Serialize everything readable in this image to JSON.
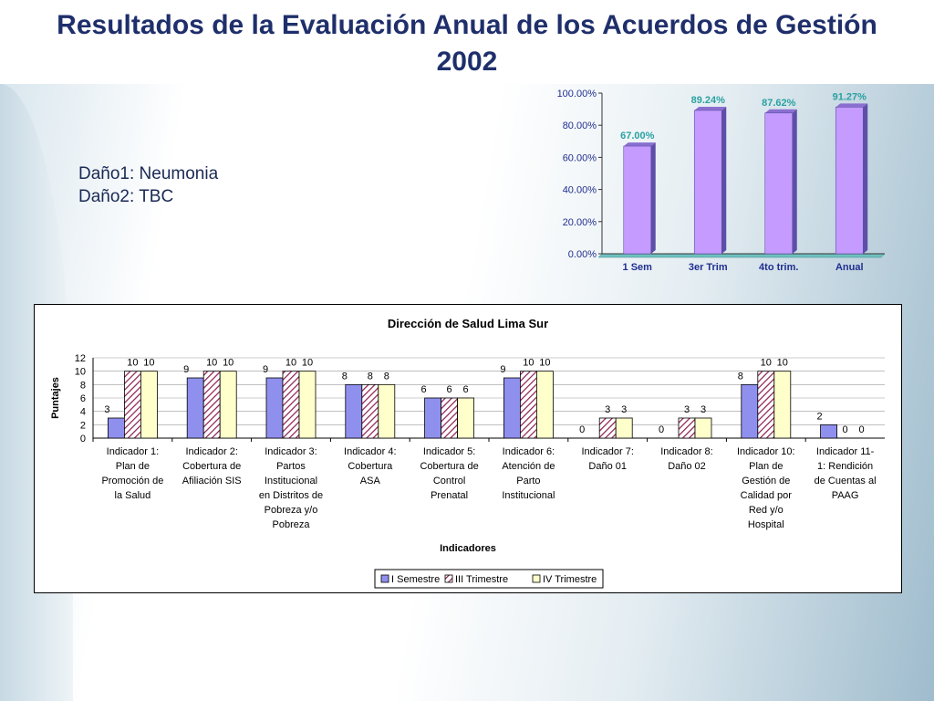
{
  "slide": {
    "title": "Resultados de la Evaluación Anual de los Acuerdos de Gestión 2002",
    "notes": [
      "Daño1: Neumonia",
      "Daño2: TBC"
    ]
  },
  "colors": {
    "title": "#1f2f6b",
    "top_bar": "#c59bff",
    "top_label": "#2aa1a1",
    "series_1": "#8f90ee",
    "series_2": "#c4a0d8",
    "series_3": "#ffffcc"
  },
  "chart_data": [
    {
      "type": "bar",
      "title": "",
      "categories": [
        "1 Sem",
        "3er Trim",
        "4to trim.",
        "Anual"
      ],
      "values": [
        67.0,
        89.24,
        87.62,
        91.27
      ],
      "value_labels": [
        "67.00%",
        "89.24%",
        "87.62%",
        "91.27%"
      ],
      "ylim": [
        0,
        100
      ],
      "y_ticks": [
        "0.00%",
        "20.00%",
        "40.00%",
        "60.00%",
        "80.00%",
        "100.00%"
      ],
      "grid": false,
      "legend": "none"
    },
    {
      "type": "bar",
      "title": "Dirección de Salud Lima Sur",
      "xlabel": "Indicadores",
      "ylabel": "Puntajes",
      "ylim": [
        0,
        12
      ],
      "y_ticks": [
        "0",
        "2",
        "4",
        "6",
        "8",
        "10",
        "12"
      ],
      "grid": true,
      "legend": "bottom",
      "categories": [
        [
          "Indicador 1:",
          "Plan de",
          "Promoción de",
          "la Salud"
        ],
        [
          "Indicador 2:",
          "Cobertura de",
          "Afiliación SIS"
        ],
        [
          "Indicador 3:",
          "Partos",
          "Institucional",
          "en Distritos de",
          "Pobreza y/o",
          "Pobreza"
        ],
        [
          "Indicador 4:",
          "Cobertura",
          "ASA"
        ],
        [
          "Indicador 5:",
          "Cobertura de",
          "Control",
          "Prenatal"
        ],
        [
          "Indicador 6:",
          "Atención de",
          "Parto",
          "Institucional"
        ],
        [
          "Indicador 7:",
          "Daño 01"
        ],
        [
          "Indicador 8:",
          "Daño 02"
        ],
        [
          "Indicador 10:",
          "Plan de",
          "Gestión de",
          "Calidad por",
          "Red y/o",
          "Hospital"
        ],
        [
          "Indicador 11-",
          "1: Rendición",
          "de Cuentas al",
          "PAAG"
        ]
      ],
      "series": [
        {
          "name": "I Semestre",
          "values": [
            3,
            9,
            9,
            8,
            6,
            9,
            0,
            0,
            8,
            2
          ]
        },
        {
          "name": "III Trimestre",
          "values": [
            10,
            10,
            10,
            8,
            6,
            10,
            3,
            3,
            10,
            0
          ]
        },
        {
          "name": "IV Trimestre",
          "values": [
            10,
            10,
            10,
            8,
            6,
            10,
            3,
            3,
            10,
            0
          ]
        }
      ]
    }
  ]
}
